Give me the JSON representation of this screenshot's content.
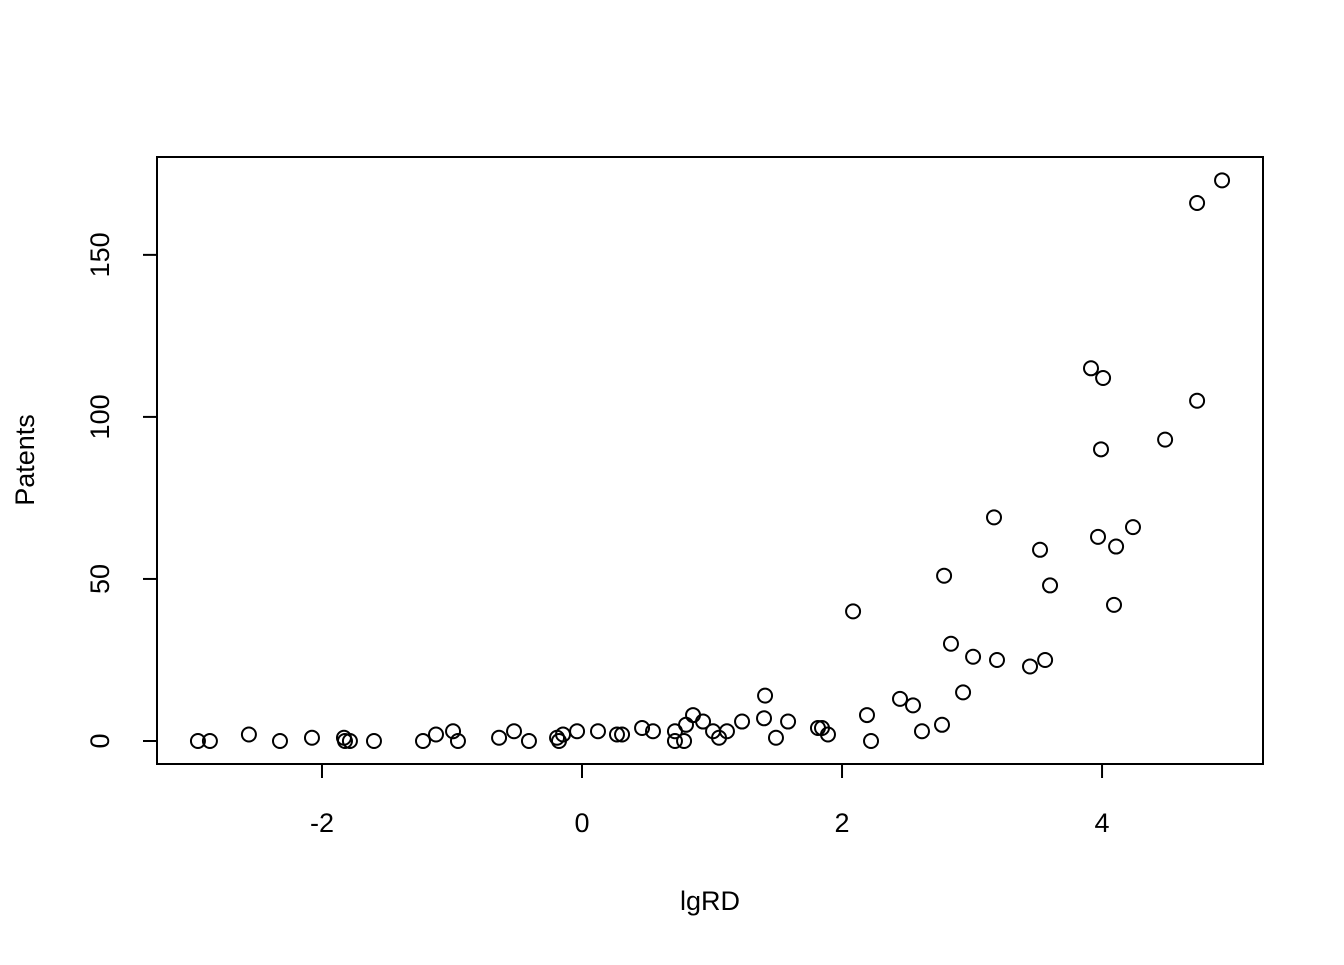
{
  "chart_data": {
    "type": "scatter",
    "x_label": "lgRD",
    "y_label": "Patents",
    "x": [
      -2.954,
      -2.862,
      -2.562,
      -2.323,
      -2.077,
      -1.831,
      -1.823,
      -1.785,
      -1.6,
      -1.223,
      -1.123,
      -0.992,
      -0.954,
      -0.638,
      -0.523,
      -0.408,
      -0.192,
      -0.177,
      -0.146,
      -0.038,
      0.123,
      0.269,
      0.308,
      0.462,
      0.546,
      0.715,
      0.715,
      0.785,
      0.8,
      0.854,
      0.931,
      1.008,
      1.054,
      1.115,
      1.231,
      1.4,
      1.408,
      1.492,
      1.585,
      1.815,
      1.846,
      1.892,
      2.085,
      2.192,
      2.223,
      2.446,
      2.546,
      2.615,
      2.769,
      2.785,
      2.838,
      2.931,
      3.008,
      3.169,
      3.192,
      3.446,
      3.523,
      3.562,
      3.6,
      3.915,
      3.969,
      3.992,
      4.008,
      4.092,
      4.108,
      4.238,
      4.485,
      4.731,
      4.731,
      4.923
    ],
    "values": [
      0,
      0,
      2,
      0,
      1,
      1,
      0,
      0,
      0,
      0,
      2,
      3,
      0,
      1,
      3,
      0,
      1,
      0,
      2,
      3,
      3,
      2,
      2,
      4,
      3,
      3,
      0,
      0,
      5,
      8,
      6,
      3,
      1,
      3,
      6,
      7,
      14,
      1,
      6,
      4,
      4,
      2,
      40,
      8,
      0,
      13,
      11,
      3,
      5,
      51,
      30,
      15,
      26,
      69,
      25,
      23,
      59,
      25,
      48,
      115,
      63,
      90,
      112,
      42,
      60,
      66,
      93,
      166,
      105,
      173
    ],
    "color": "#000000",
    "xlim": [
      -3.269,
      5.238
    ],
    "ylim": [
      -7.1,
      180.2
    ],
    "xticks": [
      -2,
      0,
      2,
      4
    ],
    "yticks": [
      0,
      50,
      100,
      150
    ]
  }
}
